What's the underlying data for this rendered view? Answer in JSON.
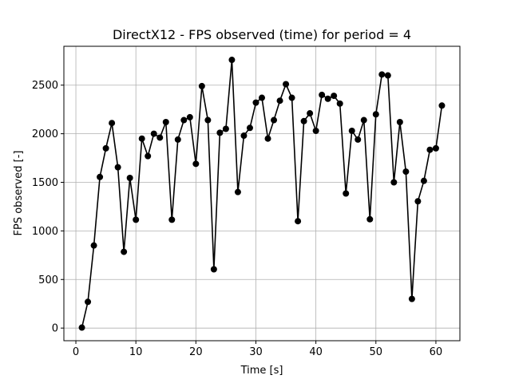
{
  "chart_data": {
    "type": "line",
    "title": "DirectX12 - FPS observed (time) for period = 4",
    "xlabel": "Time [s]",
    "ylabel": "FPS observed [-]",
    "xlim": [
      -2,
      64
    ],
    "ylim": [
      -130,
      2900
    ],
    "xticks": [
      0,
      10,
      20,
      30,
      40,
      50,
      60
    ],
    "yticks": [
      0,
      500,
      1000,
      1500,
      2000,
      2500
    ],
    "grid": true,
    "series": [
      {
        "color": "#000000",
        "marker": "circle",
        "x": [
          1,
          2,
          3,
          4,
          5,
          6,
          7,
          8,
          9,
          10,
          11,
          12,
          13,
          14,
          15,
          16,
          17,
          18,
          19,
          20,
          21,
          22,
          23,
          24,
          25,
          26,
          27,
          28,
          29,
          30,
          31,
          32,
          33,
          34,
          35,
          36,
          37,
          38,
          39,
          40,
          41,
          42,
          43,
          44,
          45,
          46,
          47,
          48,
          49,
          50,
          51,
          52,
          53,
          54,
          55,
          56,
          57,
          58,
          59,
          60,
          61
        ],
        "y": [
          5,
          270,
          850,
          1555,
          1850,
          2110,
          1655,
          785,
          1545,
          1115,
          1950,
          1770,
          2000,
          1960,
          2120,
          1115,
          1940,
          2140,
          2170,
          1690,
          2490,
          2140,
          605,
          2010,
          2050,
          2760,
          1400,
          1980,
          2060,
          2320,
          2370,
          1950,
          2140,
          2340,
          2510,
          2370,
          1100,
          2130,
          2210,
          2030,
          2400,
          2360,
          2390,
          2310,
          1385,
          2030,
          1940,
          2140,
          1120,
          2200,
          2610,
          2600,
          1500,
          2120,
          1610,
          300,
          1305,
          1515,
          1835,
          1850,
          2290
        ]
      }
    ]
  }
}
